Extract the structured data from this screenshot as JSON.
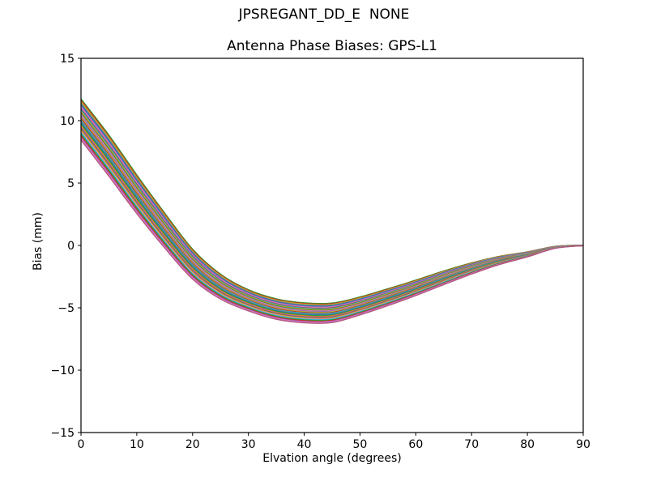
{
  "chart_data": {
    "type": "line",
    "title": "JPSREGANT_DD_E  NONE",
    "subtitle": "Antenna Phase Biases: GPS-L1",
    "xlabel": "Elvation angle (degrees)",
    "ylabel": "Bias (mm)",
    "xlim": [
      0,
      90
    ],
    "ylim": [
      -15,
      15
    ],
    "x_ticks": [
      0,
      10,
      20,
      30,
      40,
      50,
      60,
      70,
      80,
      90
    ],
    "y_ticks": [
      -15,
      -10,
      -5,
      0,
      5,
      10,
      15
    ],
    "grid": false,
    "legend": "none",
    "frame_color": "#000000",
    "background_color": "#ffffff",
    "description": "Bundle of ~30 overlapping antenna phase bias curves, one per satellite pass, all following the same shape: start between +8.5 and +11.7 mm at 0 deg elevation, cross zero near 17-20 deg, reach a minimum of -4.6 to -6.2 mm near 40-45 deg, then converge to 0 mm at 90 deg.",
    "series_model": "value_i(x) = band_mean(x) + offset_i * band_half_spread(x)",
    "x": [
      0,
      5,
      10,
      15,
      20,
      25,
      30,
      35,
      40,
      45,
      50,
      55,
      60,
      65,
      70,
      75,
      80,
      85,
      90
    ],
    "band_mean": [
      10.1,
      7.2,
      4.1,
      1.2,
      -1.5,
      -3.3,
      -4.4,
      -5.1,
      -5.4,
      -5.4,
      -4.85,
      -4.15,
      -3.4,
      -2.6,
      -1.85,
      -1.2,
      -0.72,
      -0.15,
      0.0
    ],
    "band_half_spread": [
      1.65,
      1.65,
      1.55,
      1.4,
      1.2,
      1.0,
      0.85,
      0.82,
      0.8,
      0.78,
      0.72,
      0.68,
      0.62,
      0.55,
      0.45,
      0.33,
      0.2,
      0.08,
      0.02
    ],
    "line_width": 1.4,
    "lines": [
      {
        "color": "#2ca02c",
        "offset": 1.0
      },
      {
        "color": "#d62728",
        "offset": 0.931
      },
      {
        "color": "#bcbd22",
        "offset": 0.862
      },
      {
        "color": "#7f7f7f",
        "offset": 0.793
      },
      {
        "color": "#1f77b4",
        "offset": 0.724
      },
      {
        "color": "#9467bd",
        "offset": 0.655
      },
      {
        "color": "#e377c2",
        "offset": 0.586
      },
      {
        "color": "#8c564b",
        "offset": 0.517
      },
      {
        "color": "#17becf",
        "offset": 0.448
      },
      {
        "color": "#ff7f0e",
        "offset": 0.379
      },
      {
        "color": "#2ca02c",
        "offset": 0.31
      },
      {
        "color": "#e377c2",
        "offset": 0.241
      },
      {
        "color": "#9467bd",
        "offset": 0.172
      },
      {
        "color": "#bcbd22",
        "offset": 0.103
      },
      {
        "color": "#d62728",
        "offset": 0.034
      },
      {
        "color": "#17becf",
        "offset": -0.034
      },
      {
        "color": "#7f7f7f",
        "offset": -0.103
      },
      {
        "color": "#1f77b4",
        "offset": -0.172
      },
      {
        "color": "#2ca02c",
        "offset": -0.241
      },
      {
        "color": "#ff7f0e",
        "offset": -0.31
      },
      {
        "color": "#9467bd",
        "offset": -0.379
      },
      {
        "color": "#8c564b",
        "offset": -0.448
      },
      {
        "color": "#bcbd22",
        "offset": -0.517
      },
      {
        "color": "#e377c2",
        "offset": -0.586
      },
      {
        "color": "#17becf",
        "offset": -0.655
      },
      {
        "color": "#2ca02c",
        "offset": -0.724
      },
      {
        "color": "#d62728",
        "offset": -0.793
      },
      {
        "color": "#9467bd",
        "offset": -0.862
      },
      {
        "color": "#e377c2",
        "offset": -0.931
      },
      {
        "color": "#b0597e",
        "offset": -1.0
      }
    ]
  }
}
